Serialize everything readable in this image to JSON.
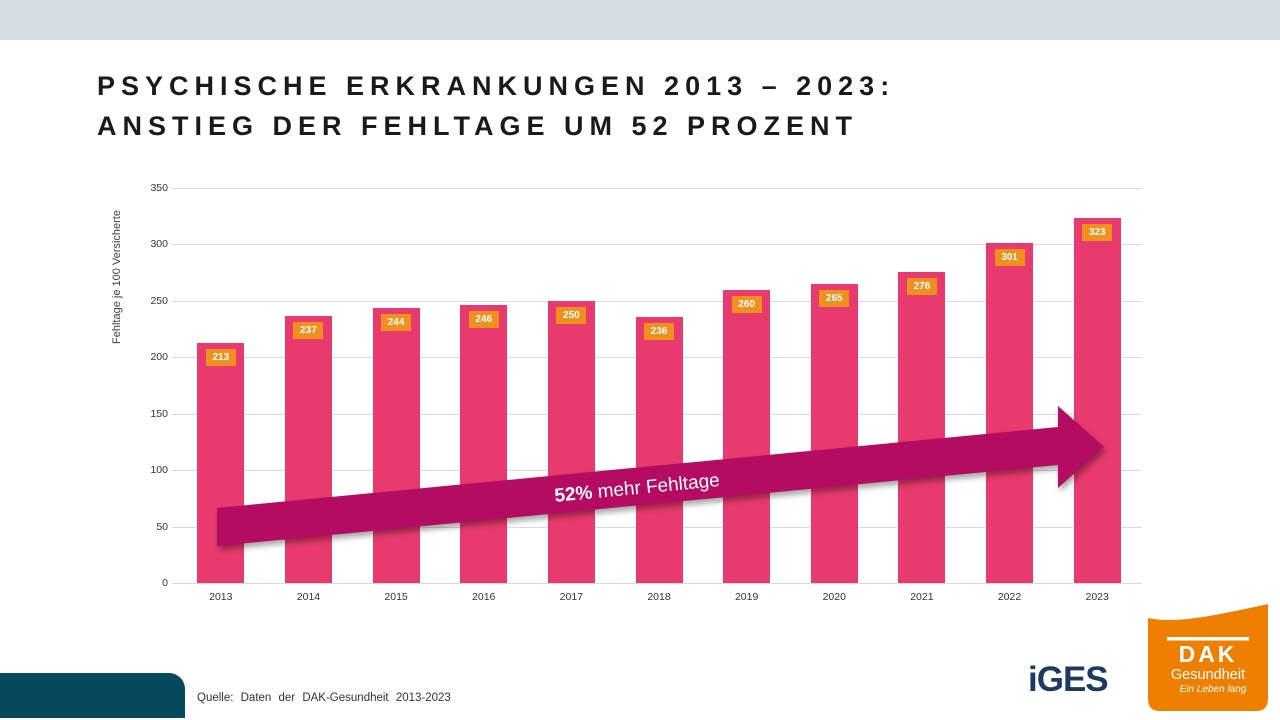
{
  "title": {
    "line1": "PSYCHISCHE ERKRANKUNGEN 2013 – 2023:",
    "line2": "ANSTIEG DER FEHLTAGE UM 52 PROZENT"
  },
  "chart_data": {
    "type": "bar",
    "categories": [
      "2013",
      "2014",
      "2015",
      "2016",
      "2017",
      "2018",
      "2019",
      "2020",
      "2021",
      "2022",
      "2023"
    ],
    "values": [
      213,
      237,
      244,
      246,
      250,
      236,
      260,
      265,
      276,
      301,
      323
    ],
    "ylabel": "Fehltage je 100 Versicherte",
    "xlabel": "",
    "yticks": [
      0,
      50,
      100,
      150,
      200,
      250,
      300,
      350
    ],
    "ylim": [
      0,
      350
    ],
    "grid": true,
    "legend": "none",
    "bar_color": "#e83a6e",
    "label_bg": "#f0911e",
    "label_color": "#ffffff",
    "annotation": {
      "bold": "52%",
      "rest": " mehr Fehltage",
      "color": "#b30c62"
    }
  },
  "source": {
    "text": "Quelle: Daten der DAK-Gesundheit 2013-2023"
  },
  "logos": {
    "iges": {
      "text": "iGES",
      "color": "#1d3a60"
    },
    "dak": {
      "name": "DAK",
      "sub": "Gesundheit",
      "tagline": "Ein Leben lang",
      "bg": "#ee7f00"
    }
  },
  "colors": {
    "banner": "#d6dce3",
    "teal_block": "#07495c",
    "gridline": "#d9d9d9"
  }
}
